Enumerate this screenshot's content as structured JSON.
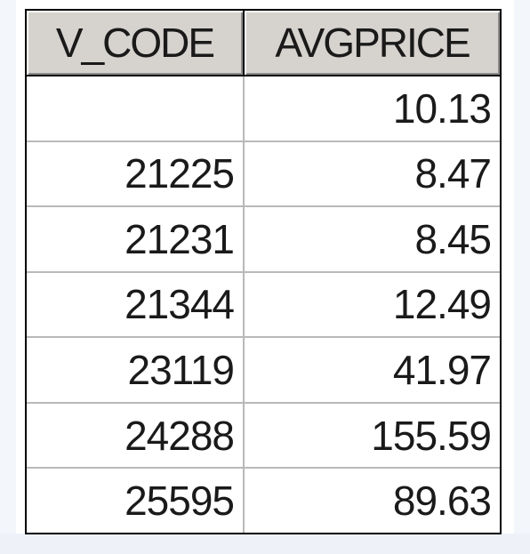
{
  "table": {
    "columns": [
      "V_CODE",
      "AVGPRICE"
    ],
    "rows": [
      {
        "v_code": "",
        "avgprice": "10.13"
      },
      {
        "v_code": "21225",
        "avgprice": "8.47"
      },
      {
        "v_code": "21231",
        "avgprice": "8.45"
      },
      {
        "v_code": "21344",
        "avgprice": "12.49"
      },
      {
        "v_code": "23119",
        "avgprice": "41.97"
      },
      {
        "v_code": "24288",
        "avgprice": "155.59"
      },
      {
        "v_code": "25595",
        "avgprice": "89.63"
      }
    ]
  },
  "colors": {
    "header_bg": "#d6d3ce",
    "grid_border": "#000000",
    "cell_line": "#b9b9b9",
    "text": "#1a1a1a"
  }
}
